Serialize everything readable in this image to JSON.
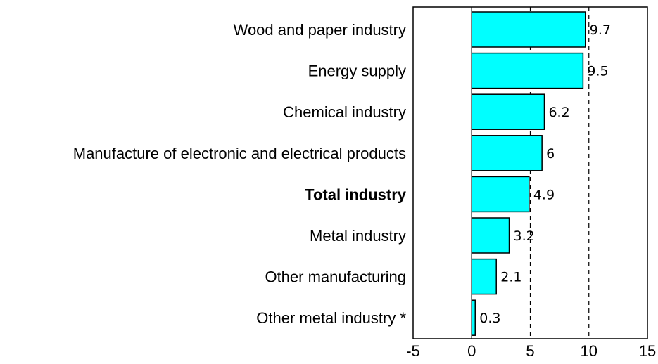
{
  "colors": {
    "bar_fill": "#00FFFF",
    "bar_stroke": "#000000",
    "axis": "#000000",
    "grid": "#000000"
  },
  "chart_data": {
    "type": "bar",
    "orientation": "horizontal",
    "categories": [
      "Wood and paper industry",
      "Energy supply",
      "Chemical industry",
      "Manufacture of electronic and electrical products",
      "Total industry",
      "Metal industry",
      "Other manufacturing",
      "Other metal industry *"
    ],
    "values": [
      9.7,
      9.5,
      6.2,
      6,
      4.9,
      3.2,
      2.1,
      0.3
    ],
    "value_labels": [
      "9.7",
      "9.5",
      "6.2",
      "6",
      "4.9",
      "3.2",
      "2.1",
      "0.3"
    ],
    "bold_categories": [
      "Total industry"
    ],
    "xlim": [
      -5,
      15
    ],
    "xticks": [
      -5,
      0,
      5,
      10,
      15
    ],
    "xtick_labels": [
      "-5",
      "0",
      "5",
      "10",
      "15"
    ],
    "gridlines_x": [
      5,
      10
    ],
    "grid_style": "dashed vertical",
    "title": "",
    "xlabel": "",
    "ylabel": ""
  }
}
